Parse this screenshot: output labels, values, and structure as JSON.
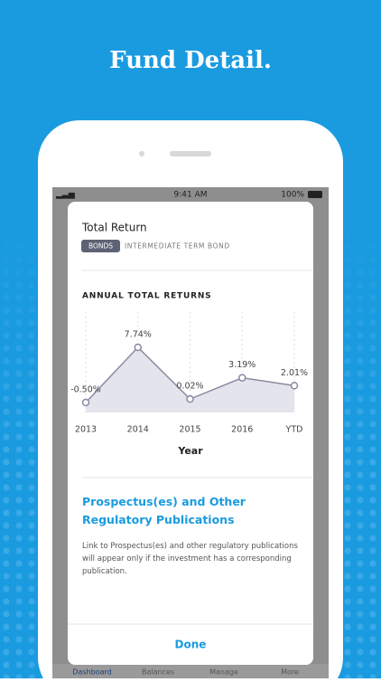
{
  "headline": "Fund Detail.",
  "status_bar": {
    "time": "9:41 AM",
    "battery": "100%"
  },
  "card": {
    "title": "Total Return",
    "badge": "BONDS",
    "category": "INTERMEDIATE TERM BOND",
    "section_title": "Prospectus(es) and Other Regulatory Publications",
    "section_body": "Link to Prospectus(es) and other regulatory publications will appear only if the investment has a corresponding publication.",
    "button": "Done"
  },
  "tabs": [
    "Dashboard",
    "Balances",
    "Manage",
    "More"
  ],
  "chart_data": {
    "type": "line",
    "title": "ANNUAL TOTAL RETURNS",
    "x_label": "Year",
    "categories": [
      "2013",
      "2014",
      "2015",
      "2016",
      "YTD"
    ],
    "values": [
      -0.5,
      7.74,
      0.02,
      3.19,
      2.01
    ],
    "value_labels": [
      "-0.50%",
      "7.74%",
      "0.02%",
      "3.19%",
      "2.01%"
    ],
    "color": "#8a8ba3",
    "fill": "#e4e4ec"
  }
}
